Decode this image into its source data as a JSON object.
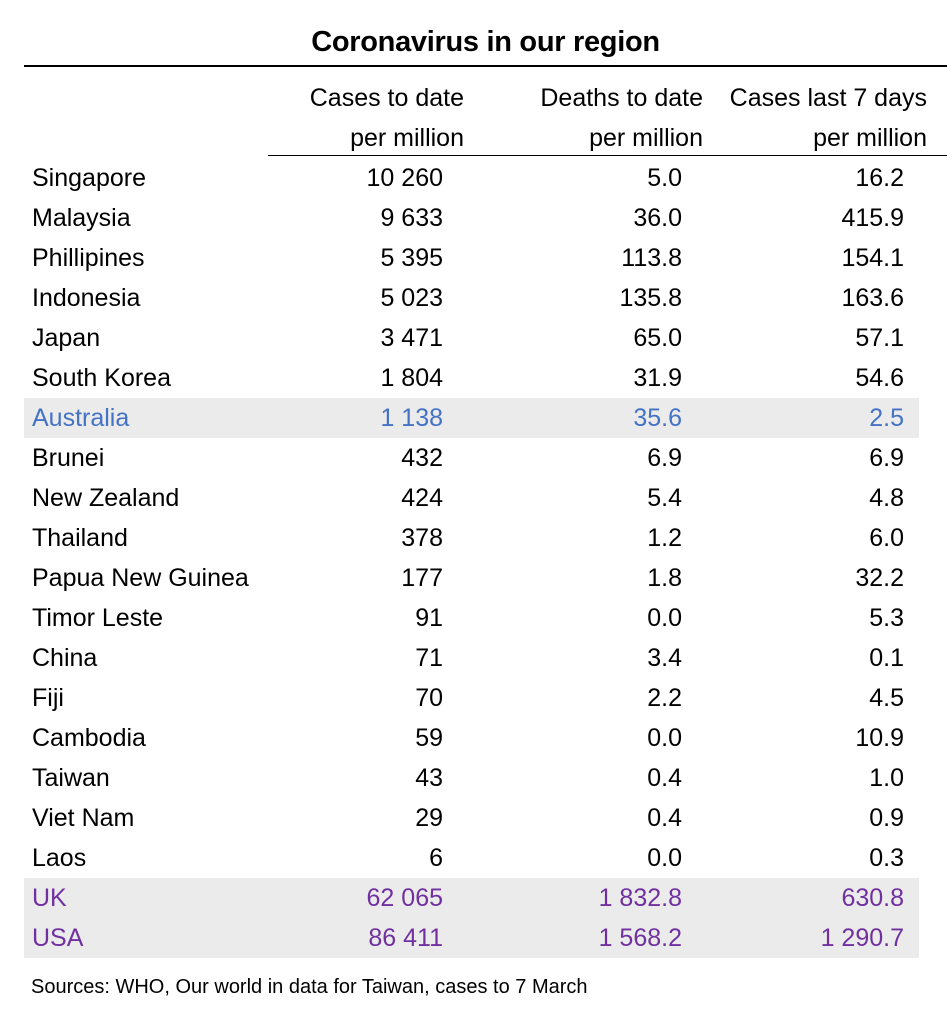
{
  "chart_data": {
    "type": "table",
    "title": "Coronavirus in our region",
    "columns": [
      {
        "line1": "Cases to date",
        "line2": "per million"
      },
      {
        "line1": "Deaths to date",
        "line2": "per million"
      },
      {
        "line1": "Cases last 7 days",
        "line2": "per million"
      }
    ],
    "rows": [
      {
        "country": "Singapore",
        "cases": "10 260",
        "deaths": "5.0",
        "cases7": "16.2",
        "highlight": false,
        "color": "#000000"
      },
      {
        "country": "Malaysia",
        "cases": "9 633",
        "deaths": "36.0",
        "cases7": "415.9",
        "highlight": false,
        "color": "#000000"
      },
      {
        "country": "Phillipines",
        "cases": "5 395",
        "deaths": "113.8",
        "cases7": "154.1",
        "highlight": false,
        "color": "#000000"
      },
      {
        "country": "Indonesia",
        "cases": "5 023",
        "deaths": "135.8",
        "cases7": "163.6",
        "highlight": false,
        "color": "#000000"
      },
      {
        "country": "Japan",
        "cases": "3 471",
        "deaths": "65.0",
        "cases7": "57.1",
        "highlight": false,
        "color": "#000000"
      },
      {
        "country": "South Korea",
        "cases": "1 804",
        "deaths": "31.9",
        "cases7": "54.6",
        "highlight": false,
        "color": "#000000"
      },
      {
        "country": "Australia",
        "cases": "1 138",
        "deaths": "35.6",
        "cases7": "2.5",
        "highlight": true,
        "color": "#4472c4"
      },
      {
        "country": "Brunei",
        "cases": "432",
        "deaths": "6.9",
        "cases7": "6.9",
        "highlight": false,
        "color": "#000000"
      },
      {
        "country": "New Zealand",
        "cases": "424",
        "deaths": "5.4",
        "cases7": "4.8",
        "highlight": false,
        "color": "#000000"
      },
      {
        "country": "Thailand",
        "cases": "378",
        "deaths": "1.2",
        "cases7": "6.0",
        "highlight": false,
        "color": "#000000"
      },
      {
        "country": "Papua New Guinea",
        "cases": "177",
        "deaths": "1.8",
        "cases7": "32.2",
        "highlight": false,
        "color": "#000000"
      },
      {
        "country": "Timor Leste",
        "cases": "91",
        "deaths": "0.0",
        "cases7": "5.3",
        "highlight": false,
        "color": "#000000"
      },
      {
        "country": "China",
        "cases": "71",
        "deaths": "3.4",
        "cases7": "0.1",
        "highlight": false,
        "color": "#000000"
      },
      {
        "country": "Fiji",
        "cases": "70",
        "deaths": "2.2",
        "cases7": "4.5",
        "highlight": false,
        "color": "#000000"
      },
      {
        "country": "Cambodia",
        "cases": "59",
        "deaths": "0.0",
        "cases7": "10.9",
        "highlight": false,
        "color": "#000000"
      },
      {
        "country": "Taiwan",
        "cases": "43",
        "deaths": "0.4",
        "cases7": "1.0",
        "highlight": false,
        "color": "#000000"
      },
      {
        "country": "Viet Nam",
        "cases": "29",
        "deaths": "0.4",
        "cases7": "0.9",
        "highlight": false,
        "color": "#000000"
      },
      {
        "country": "Laos",
        "cases": "6",
        "deaths": "0.0",
        "cases7": "0.3",
        "highlight": false,
        "color": "#000000"
      },
      {
        "country": "UK",
        "cases": "62 065",
        "deaths": "1 832.8",
        "cases7": "630.8",
        "highlight": true,
        "color": "#7030a0"
      },
      {
        "country": "USA",
        "cases": "86 411",
        "deaths": "1 568.2",
        "cases7": "1 290.7",
        "highlight": true,
        "color": "#7030a0"
      }
    ],
    "source": "Sources: WHO, Our world in data for Taiwan, cases to 7 March"
  }
}
